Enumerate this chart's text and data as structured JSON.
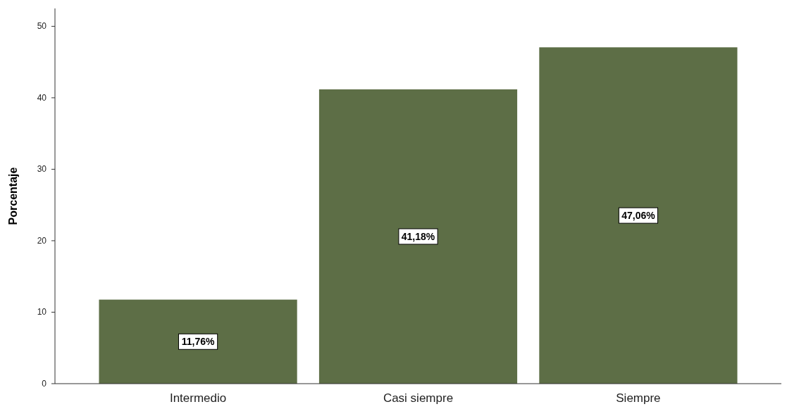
{
  "chart_data": {
    "type": "bar",
    "ylabel": "Porcentaje",
    "categories": [
      "Intermedio",
      "Casi siempre",
      "Siempre"
    ],
    "values": [
      11.76,
      41.18,
      47.06
    ],
    "value_labels": [
      "11,76%",
      "41,18%",
      "47,06%"
    ],
    "color": "#5d6e46",
    "ylim": [
      0,
      52.5
    ],
    "yticks": [
      0,
      10,
      20,
      30,
      40,
      50
    ],
    "grid": false
  }
}
